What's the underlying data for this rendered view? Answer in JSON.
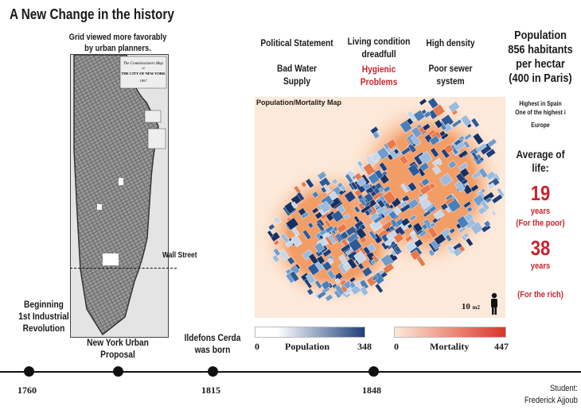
{
  "title": "A New Change in the history",
  "ny": {
    "caption_line1": "Grid viewed more favorably",
    "caption_line2": "by urban planners.",
    "map_title_line1": "The Commissioners Map",
    "map_title_line2": "of",
    "map_title_line3": "THE CITY OF NEW YORK",
    "map_title_line4": "1807",
    "wall_street": "Wall Street"
  },
  "notes": {
    "political": "Political Statement",
    "water_1": "Bad Water",
    "water_2": "Supply",
    "living_1": "Living condition",
    "living_2": "dreadfull",
    "hygienic_1": "Hygienic",
    "hygienic_2": "Problems",
    "density": "High density",
    "sewer_1": "Poor sewer",
    "sewer_2": "system",
    "pop_1": "Population",
    "pop_2": "856 habitants",
    "pop_3": "per hectar",
    "pop_4": "(400 in Paris)",
    "spain_1": "Highest in Spain",
    "spain_2": "One of the highest i",
    "spain_3": "Europe",
    "avg_1": "Average of",
    "avg_2": "life:",
    "poor_num": "19",
    "poor_years": "years",
    "poor_label": "(For the poor)",
    "rich_num": "38",
    "rich_years": "years",
    "rich_label": "(For the rich)"
  },
  "map": {
    "title": "Population/Mortality Map",
    "scale": "10",
    "scale_unit": "m2",
    "population": {
      "label": "Population",
      "min": "0",
      "max": "348",
      "color": "#1f3f7a"
    },
    "mortality": {
      "label": "Mortality",
      "min": "0",
      "max": "447",
      "color": "#d8362a"
    }
  },
  "timeline": {
    "events": [
      {
        "year": "1760",
        "label_1": "Beginning",
        "label_2": "1st Industrial",
        "label_3": "Revolution"
      },
      {
        "year": "",
        "label_1": "New York Urban",
        "label_2": "Proposal"
      },
      {
        "year": "1815",
        "label_1": "Ildefons Cerda",
        "label_2": "was born"
      },
      {
        "year": "1848"
      }
    ]
  },
  "student": {
    "label": "Student:",
    "name": "Frederick Ajjoub"
  }
}
